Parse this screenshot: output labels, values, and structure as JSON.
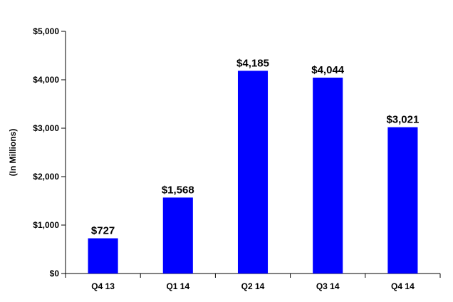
{
  "chart_data": {
    "type": "bar",
    "categories": [
      "Q4 13",
      "Q1 14",
      "Q2 14",
      "Q3 14",
      "Q4 14"
    ],
    "values": [
      727,
      1568,
      4185,
      4044,
      3021
    ],
    "data_labels": [
      "$727",
      "$1,568",
      "$4,185",
      "$4,044",
      "$3,021"
    ],
    "ylabel": "(In Millions)",
    "ylim": [
      0,
      5000
    ],
    "y_ticks": [
      0,
      1000,
      2000,
      3000,
      4000,
      5000
    ],
    "y_tick_labels": [
      "$0",
      "$1,000",
      "$2,000",
      "$3,000",
      "$4,000",
      "$5,000"
    ],
    "bar_color": "#0000ff",
    "grid": false,
    "legend": "none"
  }
}
